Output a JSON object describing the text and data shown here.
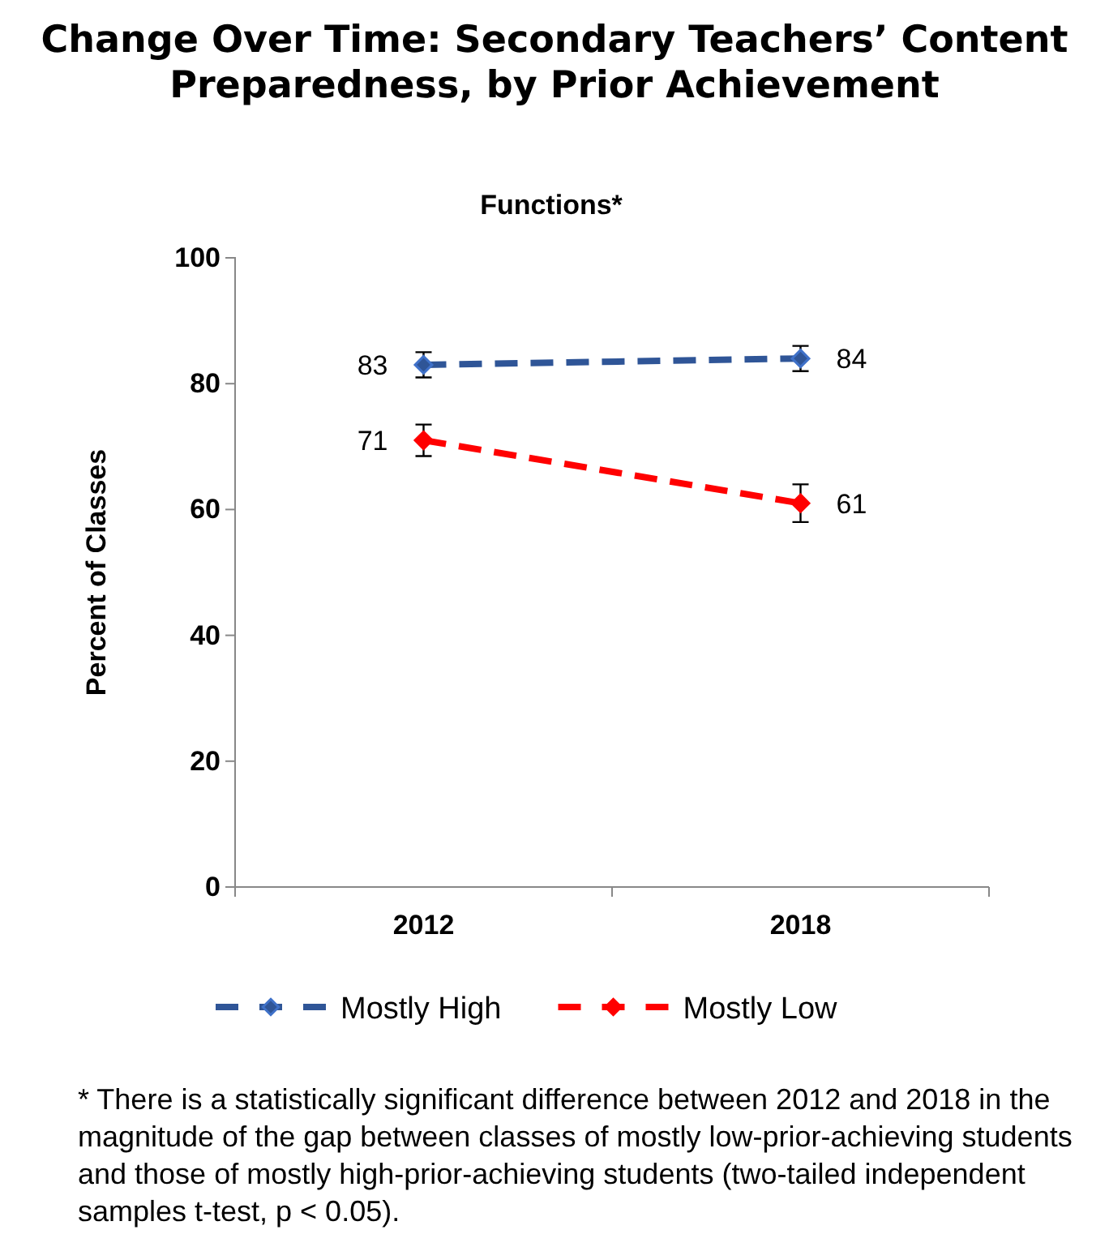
{
  "chart_data": {
    "type": "line",
    "title": "Change Over Time: Secondary Teachers’ Content Preparedness, by Prior Achievement",
    "subtitle": "Functions*",
    "ylabel": "Percent of Classes",
    "categories": [
      "2012",
      "2018"
    ],
    "series": [
      {
        "name": "Mostly High",
        "color": "#2f5597",
        "values": [
          83,
          84
        ],
        "errors": [
          2,
          2
        ]
      },
      {
        "name": "Mostly Low",
        "color": "#ff0000",
        "values": [
          71,
          61
        ],
        "errors": [
          2.5,
          3
        ]
      }
    ],
    "ylim": [
      0,
      100
    ],
    "yticks": [
      0,
      20,
      40,
      60,
      80,
      100
    ],
    "grid": false,
    "legend": "bottom",
    "marker": "diamond",
    "line_style": "dashed",
    "data_labels": true,
    "annotations": [
      "*   There is a statistically significant difference between 2012 and 2018 in the magnitude of the gap between classes of mostly low-prior-achieving students and those of mostly high-prior-achieving students (two-tailed independent samples t-test, p < 0.05)."
    ]
  }
}
